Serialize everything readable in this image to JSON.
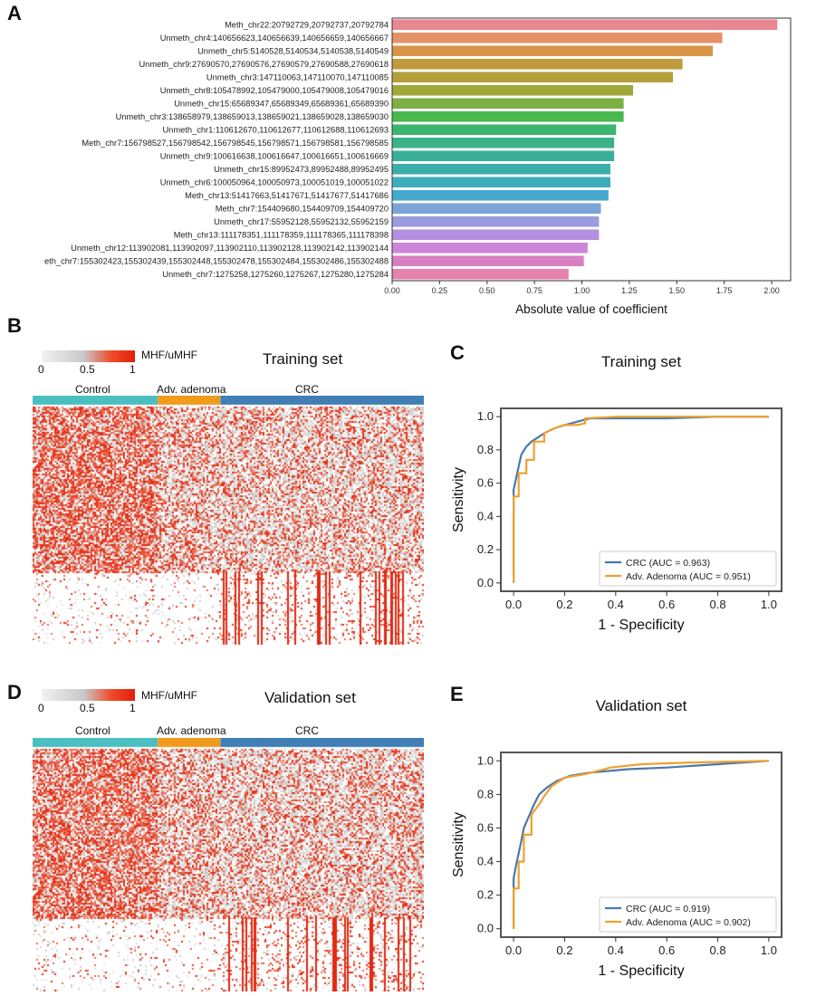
{
  "panels": {
    "a": "A",
    "b": "B",
    "c": "C",
    "d": "D",
    "e": "E"
  },
  "heatmap_legend": {
    "label": "MHF/uMHF",
    "ticks": [
      "0",
      "0.5",
      "1"
    ],
    "gradient": [
      "#f2f2f2",
      "#c8c8c8",
      "#f04a2a",
      "#e2200a"
    ]
  },
  "groups": [
    {
      "name": "Control",
      "color": "#4bbfbf"
    },
    {
      "name": "Adv. adenoma",
      "color": "#f29a1e"
    },
    {
      "name": "CRC",
      "color": "#3f7fb5"
    }
  ],
  "titles": {
    "training": "Training set",
    "validation": "Validation set"
  },
  "chart_data": [
    {
      "id": "A",
      "type": "bar",
      "orientation": "horizontal",
      "xlabel": "Absolute value of coefficient",
      "xlim": [
        0.0,
        2.1
      ],
      "xticks": [
        "0.00",
        "0.25",
        "0.50",
        "0.75",
        "1.00",
        "1.25",
        "1.50",
        "1.75",
        "2.00"
      ],
      "categories": [
        "Meth_chr22:20792729,20792737,20792784",
        "Unmeth_chr4:140656623,140656639,140656659,140656667",
        "Unmeth_chr5:5140528,5140534,5140538,5140549",
        "Unmeth_chr9:27690570,27690576,27690579,27690588,27690618",
        "Unmeth_chr3:147110063,147110070,147110085",
        "Unmeth_chr8:105478992,105479000,105479008,105479016",
        "Unmeth_chr15:65689347,65689349,65689361,65689390",
        "Unmeth_chr3:138658979,138659013,138659021,138659028,138659030",
        "Unmeth_chr1:110612670,110612677,110612688,110612693",
        "Meth_chr7:156798527,156798542,156798545,156798571,156798581,156798585",
        "Unmeth_chr9:100616638,100616647,100616651,100616669",
        "Unmeth_chr15:89952473,89952488,89952495",
        "Unmeth_chr6:100050964,100050973,100051019,100051022",
        "Meth_chr13:51417663,51417671,51417677,51417686",
        "Meth_chr7:154409680,154409709,154409720",
        "Unmeth_chr17:55952128,55952132,55952159",
        "Meth_chr13:111178351,111178359,111178365,111178398",
        "Unmeth_chr12:113902081,113902097,113902110,113902128,113902142,113902144",
        "eth_chr7:155302423,155302439,155302448,155302478,155302484,155302486,155302488",
        "Unmeth_chr7:1275258,1275260,1275267,1275280,1275284"
      ],
      "values": [
        2.03,
        1.74,
        1.69,
        1.53,
        1.48,
        1.27,
        1.22,
        1.22,
        1.18,
        1.17,
        1.17,
        1.15,
        1.15,
        1.14,
        1.1,
        1.09,
        1.09,
        1.03,
        1.01,
        0.93
      ],
      "colors": [
        "#e8878f",
        "#e59168",
        "#da9447",
        "#c09a3c",
        "#b3a03a",
        "#a0a83a",
        "#7cb042",
        "#48b84f",
        "#3bb56d",
        "#3bb286",
        "#3bb098",
        "#3caeaa",
        "#3eacbb",
        "#46a8cf",
        "#7ba4d9",
        "#9a9ce0",
        "#b38fe0",
        "#cc85d8",
        "#d87fc4",
        "#e383ad"
      ]
    },
    {
      "id": "C",
      "type": "line",
      "title": "Training set",
      "xlabel": "1 - Specificity",
      "ylabel": "Sensitivity",
      "xlim": [
        -0.05,
        1.05
      ],
      "ylim": [
        -0.05,
        1.05
      ],
      "ticks": [
        "0.0",
        "0.2",
        "0.4",
        "0.6",
        "0.8",
        "1.0"
      ],
      "series": [
        {
          "name": "CRC (AUC = 0.963)",
          "color": "#4a78a8",
          "x": [
            0.0,
            0.0,
            0.01,
            0.02,
            0.03,
            0.05,
            0.07,
            0.09,
            0.12,
            0.16,
            0.2,
            0.25,
            0.3,
            0.4,
            0.6,
            0.8,
            1.0
          ],
          "y": [
            0.0,
            0.56,
            0.63,
            0.7,
            0.77,
            0.82,
            0.85,
            0.87,
            0.9,
            0.93,
            0.95,
            0.97,
            0.99,
            0.99,
            0.99,
            1.0,
            1.0
          ]
        },
        {
          "name": "Adv. Adenoma (AUC = 0.951)",
          "color": "#f0a030",
          "x": [
            0.0,
            0.0,
            0.02,
            0.02,
            0.05,
            0.05,
            0.08,
            0.08,
            0.12,
            0.12,
            0.16,
            0.2,
            0.25,
            0.28,
            0.28,
            0.4,
            1.0
          ],
          "y": [
            0.0,
            0.52,
            0.52,
            0.66,
            0.66,
            0.74,
            0.74,
            0.85,
            0.85,
            0.9,
            0.93,
            0.95,
            0.95,
            0.96,
            0.99,
            1.0,
            1.0
          ]
        }
      ],
      "legend": "lower-right"
    },
    {
      "id": "E",
      "type": "line",
      "title": "Validation set",
      "xlabel": "1 - Specificity",
      "ylabel": "Sensitivity",
      "xlim": [
        -0.05,
        1.05
      ],
      "ylim": [
        -0.05,
        1.05
      ],
      "ticks": [
        "0.0",
        "0.2",
        "0.4",
        "0.6",
        "0.8",
        "1.0"
      ],
      "series": [
        {
          "name": "CRC (AUC = 0.919)",
          "color": "#4a78a8",
          "x": [
            0.0,
            0.0,
            0.01,
            0.02,
            0.03,
            0.04,
            0.06,
            0.08,
            0.1,
            0.13,
            0.17,
            0.22,
            0.3,
            0.45,
            0.6,
            0.8,
            1.0
          ],
          "y": [
            0.0,
            0.3,
            0.38,
            0.45,
            0.52,
            0.6,
            0.67,
            0.74,
            0.8,
            0.84,
            0.88,
            0.91,
            0.93,
            0.95,
            0.96,
            0.98,
            1.0
          ]
        },
        {
          "name": "Adv. Adenoma (AUC = 0.902)",
          "color": "#f0a030",
          "x": [
            0.0,
            0.0,
            0.02,
            0.02,
            0.04,
            0.04,
            0.07,
            0.07,
            0.1,
            0.12,
            0.15,
            0.2,
            0.28,
            0.38,
            0.5,
            0.7,
            1.0
          ],
          "y": [
            0.0,
            0.24,
            0.24,
            0.4,
            0.4,
            0.56,
            0.56,
            0.68,
            0.74,
            0.79,
            0.85,
            0.9,
            0.92,
            0.96,
            0.98,
            0.99,
            1.0
          ]
        }
      ],
      "legend": "lower-right"
    }
  ]
}
